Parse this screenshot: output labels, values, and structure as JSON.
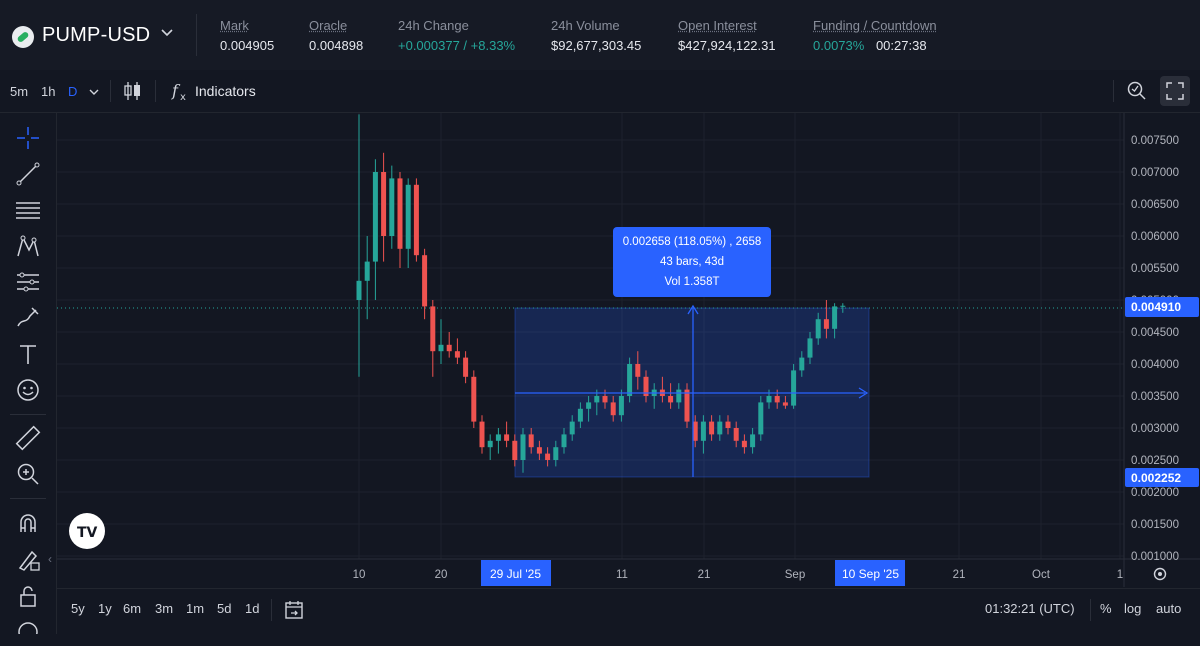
{
  "header": {
    "symbol": "PUMP-USD",
    "stats": [
      {
        "label": "Mark",
        "value": "0.004905"
      },
      {
        "label": "Oracle",
        "value": "0.004898"
      },
      {
        "label": "24h Change",
        "value": "+0.000377 / +8.33%"
      },
      {
        "label": "24h Volume",
        "value": "$92,677,303.45"
      },
      {
        "label": "Open Interest",
        "value": "$427,924,122.31"
      },
      {
        "label": "Funding / Countdown",
        "value": "0.0073%",
        "value2": "00:27:38"
      }
    ]
  },
  "toolbar": {
    "timeframes": [
      "5m",
      "1h",
      "D"
    ],
    "active_timeframe": "D",
    "indicators_label": "Indicators"
  },
  "chart": {
    "price_axis": [
      "0.007500",
      "0.007000",
      "0.006500",
      "0.006000",
      "0.005500",
      "0.005000",
      "0.004500",
      "0.004000",
      "0.003500",
      "0.003000",
      "0.002500",
      "0.002000",
      "0.001500",
      "0.001000"
    ],
    "current_price_label": "0.004910",
    "range_low_label": "0.002252",
    "time_axis": [
      "10",
      "20",
      "11",
      "21",
      "Sep",
      "21",
      "Oct",
      "1"
    ],
    "time_highlight_start": "29 Jul '25",
    "time_highlight_end": "10 Sep '25",
    "measure": {
      "line1": "0.002658 (118.05%) , 2658",
      "line2": "43 bars, 43d",
      "line3": "Vol 1.358T"
    },
    "colors": {
      "up": "#26a69a",
      "down": "#ef5350",
      "accent": "#2962ff"
    },
    "tv_logo_text": "TV"
  },
  "chart_data": {
    "type": "candlestick",
    "title": "",
    "series": [
      {
        "name": "",
        "ohlc": [
          [
            0.005,
            0.0079,
            0.0038,
            0.0053
          ],
          [
            0.0053,
            0.006,
            0.0047,
            0.0056
          ],
          [
            0.0056,
            0.0072,
            0.005,
            0.007
          ],
          [
            0.007,
            0.0073,
            0.0056,
            0.006
          ],
          [
            0.006,
            0.0071,
            0.0058,
            0.0069
          ],
          [
            0.0069,
            0.007,
            0.0055,
            0.0058
          ],
          [
            0.0058,
            0.0069,
            0.0055,
            0.0068
          ],
          [
            0.0068,
            0.0069,
            0.0056,
            0.0057
          ],
          [
            0.0057,
            0.0058,
            0.0047,
            0.0049
          ],
          [
            0.0049,
            0.005,
            0.0038,
            0.0042
          ],
          [
            0.0042,
            0.0047,
            0.004,
            0.0043
          ],
          [
            0.0043,
            0.0045,
            0.0041,
            0.0042
          ],
          [
            0.0042,
            0.0044,
            0.004,
            0.0041
          ],
          [
            0.0041,
            0.0042,
            0.0037,
            0.0038
          ],
          [
            0.0038,
            0.0039,
            0.003,
            0.0031
          ],
          [
            0.0031,
            0.0032,
            0.0026,
            0.0027
          ],
          [
            0.0027,
            0.0029,
            0.0025,
            0.0028
          ],
          [
            0.0028,
            0.003,
            0.0026,
            0.0029
          ],
          [
            0.0029,
            0.0031,
            0.0027,
            0.0028
          ],
          [
            0.0028,
            0.0029,
            0.0024,
            0.0025
          ],
          [
            0.0025,
            0.003,
            0.0023,
            0.0029
          ],
          [
            0.0029,
            0.003,
            0.0026,
            0.0027
          ],
          [
            0.0027,
            0.0028,
            0.0025,
            0.0026
          ],
          [
            0.0026,
            0.0027,
            0.0024,
            0.0025
          ],
          [
            0.0025,
            0.0028,
            0.0024,
            0.0027
          ],
          [
            0.0027,
            0.003,
            0.0026,
            0.0029
          ],
          [
            0.0029,
            0.0032,
            0.0028,
            0.0031
          ],
          [
            0.0031,
            0.0034,
            0.003,
            0.0033
          ],
          [
            0.0033,
            0.0035,
            0.0031,
            0.0034
          ],
          [
            0.0034,
            0.0036,
            0.0032,
            0.0035
          ],
          [
            0.0035,
            0.0036,
            0.0033,
            0.0034
          ],
          [
            0.0034,
            0.0035,
            0.0031,
            0.0032
          ],
          [
            0.0032,
            0.0036,
            0.0031,
            0.0035
          ],
          [
            0.0035,
            0.0041,
            0.0034,
            0.004
          ],
          [
            0.004,
            0.0042,
            0.0036,
            0.0038
          ],
          [
            0.0038,
            0.0039,
            0.0034,
            0.0035
          ],
          [
            0.0035,
            0.0037,
            0.0033,
            0.0036
          ],
          [
            0.0036,
            0.0038,
            0.0034,
            0.0035
          ],
          [
            0.0035,
            0.0037,
            0.0033,
            0.0034
          ],
          [
            0.0034,
            0.0037,
            0.0033,
            0.0036
          ],
          [
            0.0036,
            0.0037,
            0.003,
            0.0031
          ],
          [
            0.0031,
            0.0032,
            0.0027,
            0.0028
          ],
          [
            0.0028,
            0.0032,
            0.0026,
            0.0031
          ],
          [
            0.0031,
            0.0032,
            0.0028,
            0.0029
          ],
          [
            0.0029,
            0.0032,
            0.0028,
            0.0031
          ],
          [
            0.0031,
            0.0032,
            0.0029,
            0.003
          ],
          [
            0.003,
            0.0031,
            0.0027,
            0.0028
          ],
          [
            0.0028,
            0.0029,
            0.0026,
            0.0027
          ],
          [
            0.0027,
            0.003,
            0.0026,
            0.0029
          ],
          [
            0.0029,
            0.0035,
            0.0028,
            0.0034
          ],
          [
            0.0034,
            0.0036,
            0.0033,
            0.0035
          ],
          [
            0.0035,
            0.0036,
            0.0033,
            0.0034
          ],
          [
            0.0034,
            0.0035,
            0.0033,
            0.00335
          ],
          [
            0.00335,
            0.004,
            0.0033,
            0.0039
          ],
          [
            0.0039,
            0.0042,
            0.0038,
            0.0041
          ],
          [
            0.0041,
            0.0045,
            0.004,
            0.0044
          ],
          [
            0.0044,
            0.0048,
            0.0043,
            0.0047
          ],
          [
            0.0047,
            0.005,
            0.0044,
            0.00455
          ],
          [
            0.00455,
            0.00495,
            0.0044,
            0.0049
          ],
          [
            0.0049,
            0.00495,
            0.0048,
            0.00491
          ]
        ]
      }
    ],
    "ylim": [
      0.001,
      0.0079
    ]
  },
  "bottom": {
    "ranges": [
      "5y",
      "1y",
      "6m",
      "3m",
      "1m",
      "5d",
      "1d"
    ],
    "clock": "01:32:21 (UTC)",
    "options": [
      "%",
      "log",
      "auto"
    ]
  }
}
